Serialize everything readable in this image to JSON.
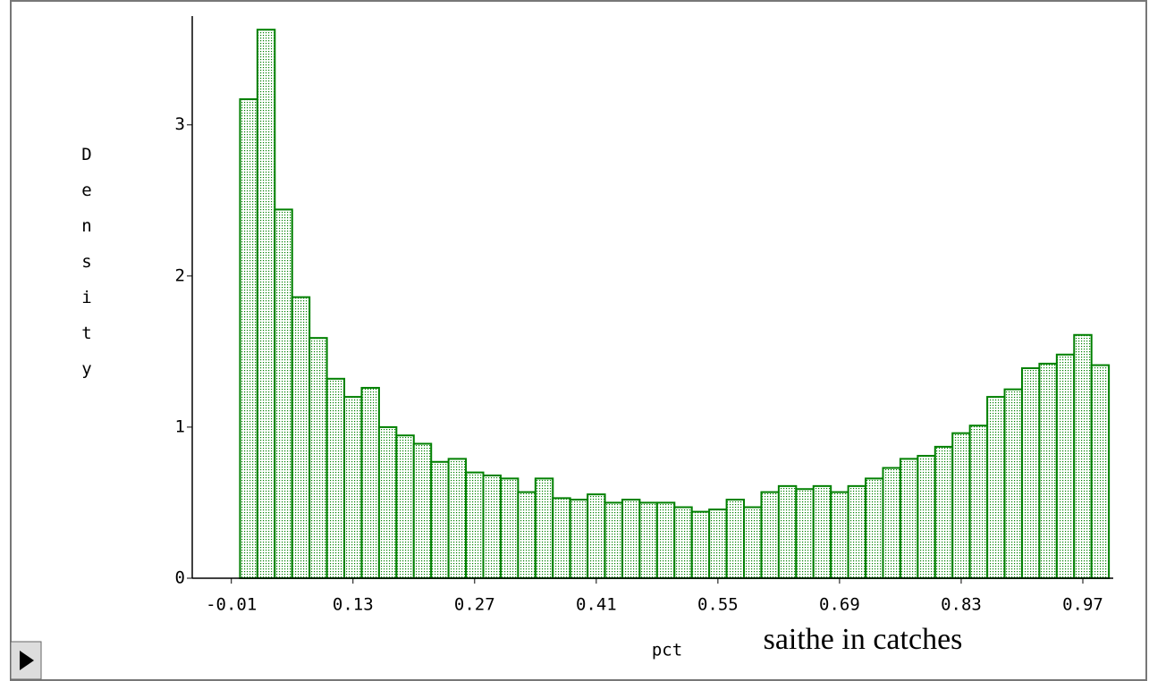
{
  "chart_data": {
    "type": "histogram",
    "x_label": "pct",
    "x_note": "saithe in catches",
    "y_label": "Density",
    "color": "#008000",
    "bins": [
      0,
      0.02,
      0.04,
      0.06,
      0.08,
      0.1,
      0.12,
      0.14,
      0.16,
      0.18,
      0.2,
      0.22,
      0.24,
      0.26,
      0.28,
      0.3,
      0.32,
      0.34,
      0.36,
      0.38,
      0.4,
      0.42,
      0.44,
      0.46,
      0.48,
      0.5,
      0.52,
      0.54,
      0.56,
      0.58,
      0.6,
      0.62,
      0.64,
      0.66,
      0.68,
      0.7,
      0.72,
      0.74,
      0.76,
      0.78,
      0.8,
      0.82,
      0.84,
      0.86,
      0.88,
      0.9,
      0.92,
      0.94,
      0.96,
      0.98,
      1
    ],
    "values": [
      3.17,
      3.63,
      2.44,
      1.86,
      1.59,
      1.32,
      1.2,
      1.26,
      1,
      0.945,
      0.89,
      0.77,
      0.79,
      0.7,
      0.68,
      0.66,
      0.57,
      0.66,
      0.53,
      0.52,
      0.555,
      0.5,
      0.52,
      0.5,
      0.5,
      0.47,
      0.44,
      0.455,
      0.52,
      0.47,
      0.57,
      0.61,
      0.59,
      0.61,
      0.57,
      0.61,
      0.66,
      0.73,
      0.79,
      0.81,
      0.87,
      0.96,
      1.01,
      1.2,
      1.25,
      1.39,
      1.42,
      1.48,
      1.61,
      1.41
    ],
    "xlim": [
      -0.055,
      1.005
    ],
    "ylim": [
      0,
      3.72
    ],
    "xticks": [
      -0.01,
      0.13,
      0.27,
      0.41,
      0.55,
      0.69,
      0.83,
      0.97
    ],
    "yticks": [
      0,
      1,
      2,
      3
    ]
  }
}
